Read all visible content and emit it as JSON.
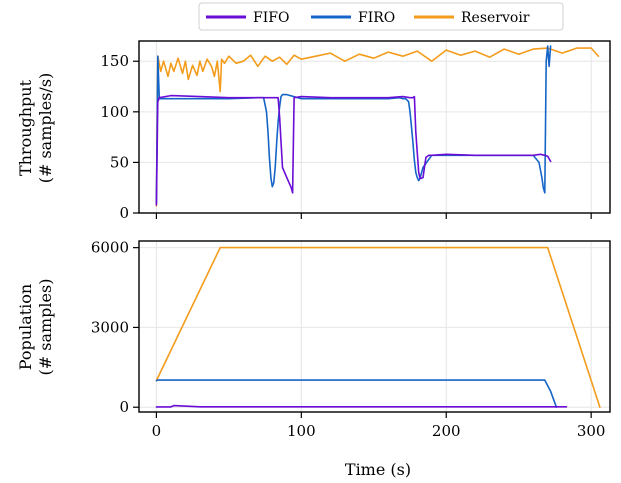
{
  "chart_data": [
    {
      "type": "line",
      "ylabel_lines": [
        "Throughput",
        "(# samples/s)"
      ],
      "xlim": [
        -12,
        313
      ],
      "ylim": [
        0,
        170
      ],
      "yticks": [
        0,
        50,
        100,
        150
      ],
      "xticks": [
        0,
        100,
        200,
        300
      ],
      "grid": true,
      "series": [
        {
          "name": "FIFO",
          "color": "#6a0dd6",
          "x": [
            0,
            1,
            2,
            10,
            30,
            50,
            70,
            80,
            84,
            85,
            87,
            90,
            93,
            94,
            95,
            100,
            120,
            140,
            160,
            170,
            175,
            177,
            178,
            179,
            181,
            182,
            184,
            186,
            188,
            190,
            200,
            220,
            240,
            260,
            265,
            268,
            270,
            272
          ],
          "y": [
            8,
            110,
            114,
            116,
            115,
            114,
            114,
            114,
            114,
            95,
            45,
            35,
            25,
            20,
            114,
            115,
            114,
            114,
            114,
            115,
            114,
            114,
            115,
            80,
            40,
            34,
            35,
            55,
            57,
            57,
            58,
            57,
            57,
            57,
            58,
            57,
            56,
            51
          ]
        },
        {
          "name": "FIRO",
          "color": "#1565c8",
          "x": [
            0,
            1,
            2,
            10,
            30,
            50,
            70,
            74,
            76,
            77,
            78,
            79,
            80,
            81,
            82,
            83,
            84,
            85,
            86,
            87,
            88,
            90,
            100,
            120,
            140,
            160,
            168,
            170,
            172,
            174,
            175,
            176,
            177,
            178,
            179,
            180,
            181,
            182,
            184,
            190,
            200,
            220,
            240,
            260,
            264,
            266,
            267,
            268,
            269,
            270,
            271,
            272
          ],
          "y": [
            10,
            155,
            113,
            113,
            113,
            113,
            114,
            114,
            100,
            80,
            55,
            35,
            26,
            30,
            45,
            70,
            90,
            105,
            115,
            117,
            117,
            117,
            113,
            113,
            113,
            113,
            114,
            113,
            113,
            110,
            100,
            85,
            70,
            52,
            40,
            35,
            32,
            35,
            45,
            57,
            57,
            57,
            57,
            57,
            50,
            35,
            25,
            20,
            150,
            165,
            145,
            165
          ]
        },
        {
          "name": "Reservoir",
          "color": "#f39c1b",
          "x": [
            0,
            1,
            3,
            5,
            8,
            10,
            12,
            15,
            18,
            20,
            22,
            25,
            28,
            30,
            32,
            35,
            38,
            40,
            42,
            44,
            45,
            47,
            50,
            55,
            60,
            65,
            70,
            75,
            80,
            85,
            90,
            95,
            100,
            110,
            120,
            130,
            140,
            150,
            160,
            170,
            180,
            190,
            200,
            210,
            220,
            230,
            240,
            250,
            260,
            270,
            280,
            290,
            300,
            305
          ],
          "y": [
            7,
            155,
            140,
            150,
            135,
            148,
            140,
            153,
            138,
            150,
            132,
            146,
            136,
            150,
            140,
            152,
            145,
            135,
            150,
            120,
            152,
            148,
            155,
            148,
            150,
            156,
            145,
            155,
            150,
            154,
            147,
            156,
            152,
            155,
            158,
            150,
            157,
            153,
            159,
            155,
            160,
            150,
            161,
            156,
            160,
            154,
            162,
            157,
            162,
            163,
            158,
            163,
            163,
            155
          ]
        }
      ]
    },
    {
      "type": "line",
      "ylabel_lines": [
        "Population",
        "(# samples)"
      ],
      "xlabel": "Time (s)",
      "xlim": [
        -12,
        313
      ],
      "ylim": [
        -180,
        6250
      ],
      "yticks": [
        0,
        3000,
        6000
      ],
      "xticks": [
        0,
        100,
        200,
        300
      ],
      "grid": true,
      "series": [
        {
          "name": "FIFO",
          "color": "#6a0dd6",
          "x": [
            0,
            10,
            12,
            30,
            100,
            200,
            270,
            283
          ],
          "y": [
            10,
            10,
            60,
            15,
            15,
            15,
            15,
            15
          ]
        },
        {
          "name": "FIRO",
          "color": "#1565c8",
          "x": [
            0,
            1,
            50,
            100,
            268,
            272,
            276
          ],
          "y": [
            1000,
            1020,
            1020,
            1020,
            1020,
            600,
            0
          ]
        },
        {
          "name": "Reservoir",
          "color": "#f39c1b",
          "x": [
            0,
            44,
            270,
            306
          ],
          "y": [
            1000,
            6000,
            6000,
            0
          ]
        }
      ]
    }
  ],
  "legend": [
    {
      "label": "FIFO",
      "color": "#6a0dd6"
    },
    {
      "label": "FIRO",
      "color": "#1565c8"
    },
    {
      "label": "Reservoir",
      "color": "#f39c1b"
    }
  ]
}
